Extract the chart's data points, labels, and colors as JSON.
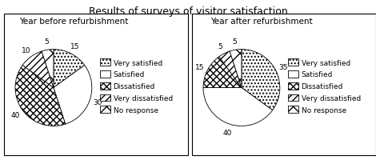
{
  "title": "Results of surveys of visitor satisfaction",
  "before_title": "Year before refurbishment",
  "after_title": "Year after refurbishment",
  "before_values": [
    15,
    30,
    40,
    10,
    5
  ],
  "after_values": [
    35,
    40,
    15,
    5,
    5
  ],
  "labels": [
    "Very satisfied",
    "Satisfied",
    "Dissatisfied",
    "Very dissatisfied",
    "No response"
  ],
  "hatch_patterns": [
    "....",
    "===",
    "xxx",
    "////",
    "\\\\|"
  ],
  "facecolor": "white",
  "title_fontsize": 9,
  "subtitle_fontsize": 7.5,
  "label_fontsize": 6.5,
  "legend_fontsize": 6.5
}
